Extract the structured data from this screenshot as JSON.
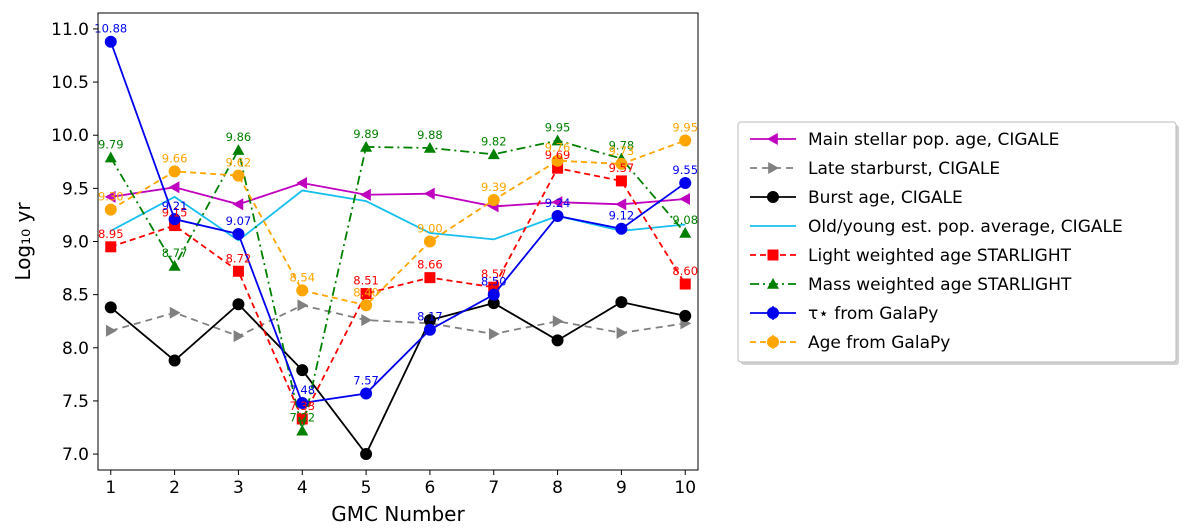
{
  "chart_data": {
    "type": "line",
    "xlabel": "GMC Number",
    "ylabel": "Log₁₀ yr",
    "xlim": [
      0.8,
      10.2
    ],
    "ylim": [
      6.85,
      11.15
    ],
    "x": [
      1,
      2,
      3,
      4,
      5,
      6,
      7,
      8,
      9,
      10
    ],
    "x_ticks": [
      "1",
      "2",
      "3",
      "4",
      "5",
      "6",
      "7",
      "8",
      "9",
      "10"
    ],
    "y_ticks": [
      "7.0",
      "7.5",
      "8.0",
      "8.5",
      "9.0",
      "9.5",
      "10.0",
      "10.5",
      "11.0"
    ],
    "grid": false,
    "legend_position": "outside-right",
    "series": [
      {
        "name": "Main stellar pop. age, CIGALE",
        "color": "#bf00bf",
        "dash": "",
        "marker": "triangle-left",
        "labels": false,
        "values": [
          9.42,
          9.51,
          9.35,
          9.55,
          9.44,
          9.45,
          9.33,
          9.37,
          9.35,
          9.4
        ]
      },
      {
        "name": "Late starburst, CIGALE",
        "color": "#808080",
        "dash": "7,5",
        "marker": "triangle-right",
        "labels": false,
        "values": [
          8.16,
          8.33,
          8.11,
          8.4,
          8.26,
          8.23,
          8.13,
          8.25,
          8.14,
          8.23
        ]
      },
      {
        "name": "Burst age, CIGALE",
        "color": "#000000",
        "dash": "",
        "marker": "circle",
        "labels": false,
        "values": [
          8.38,
          7.88,
          8.41,
          7.79,
          7.0,
          8.26,
          8.42,
          8.07,
          8.43,
          8.3
        ]
      },
      {
        "name": "Old/young est. pop. average, CIGALE",
        "color": "#17bfef",
        "dash": "",
        "marker": "none",
        "labels": false,
        "values": [
          9.1,
          9.42,
          9.01,
          9.48,
          9.38,
          9.08,
          9.02,
          9.24,
          9.1,
          9.16
        ]
      },
      {
        "name": "Light weighted age STARLIGHT",
        "color": "#ff0000",
        "dash": "6,4",
        "marker": "square",
        "labels": true,
        "values": [
          8.95,
          9.15,
          8.72,
          7.33,
          8.51,
          8.66,
          8.57,
          9.69,
          9.57,
          8.6
        ],
        "value_labels": [
          "8.95",
          "9.15",
          "8.72",
          "7.33",
          "8.51",
          "8.66",
          "8.57",
          "9.69",
          "9.57",
          "8.60"
        ]
      },
      {
        "name": "Mass weighted age STARLIGHT",
        "color": "#008000",
        "dash": "9,4,2,4",
        "marker": "triangle-up",
        "labels": true,
        "values": [
          9.79,
          8.77,
          9.86,
          7.22,
          9.89,
          9.88,
          9.82,
          9.95,
          9.78,
          9.08
        ],
        "value_labels": [
          "9.79",
          "8.77",
          "9.86",
          "7.22",
          "9.89",
          "9.88",
          "9.82",
          "9.95",
          "9.78",
          "9.08"
        ]
      },
      {
        "name": "τ⋆ from GalaPy",
        "color": "#0000ee",
        "dash": "",
        "marker": "circle",
        "labels": true,
        "errorbar": true,
        "values": [
          10.88,
          9.21,
          9.07,
          7.48,
          7.57,
          8.17,
          8.5,
          9.24,
          9.12,
          9.55
        ],
        "value_labels": [
          "10.88",
          "9.21",
          "9.07",
          "7.48",
          "7.57",
          "8.17",
          "8.50",
          "9.24",
          "9.12",
          "9.55"
        ]
      },
      {
        "name": "Age from GalaPy",
        "color": "#ffa500",
        "dash": "6,4",
        "marker": "circle",
        "labels": true,
        "errorbar": true,
        "values": [
          9.3,
          9.66,
          9.62,
          8.54,
          8.4,
          9.0,
          9.39,
          9.76,
          9.73,
          9.95
        ],
        "value_labels": [
          "9.30",
          "9.66",
          "9.62",
          "8.54",
          "8.40",
          "9.00",
          "9.39",
          "9.76",
          "9.73",
          "9.95"
        ]
      }
    ]
  }
}
